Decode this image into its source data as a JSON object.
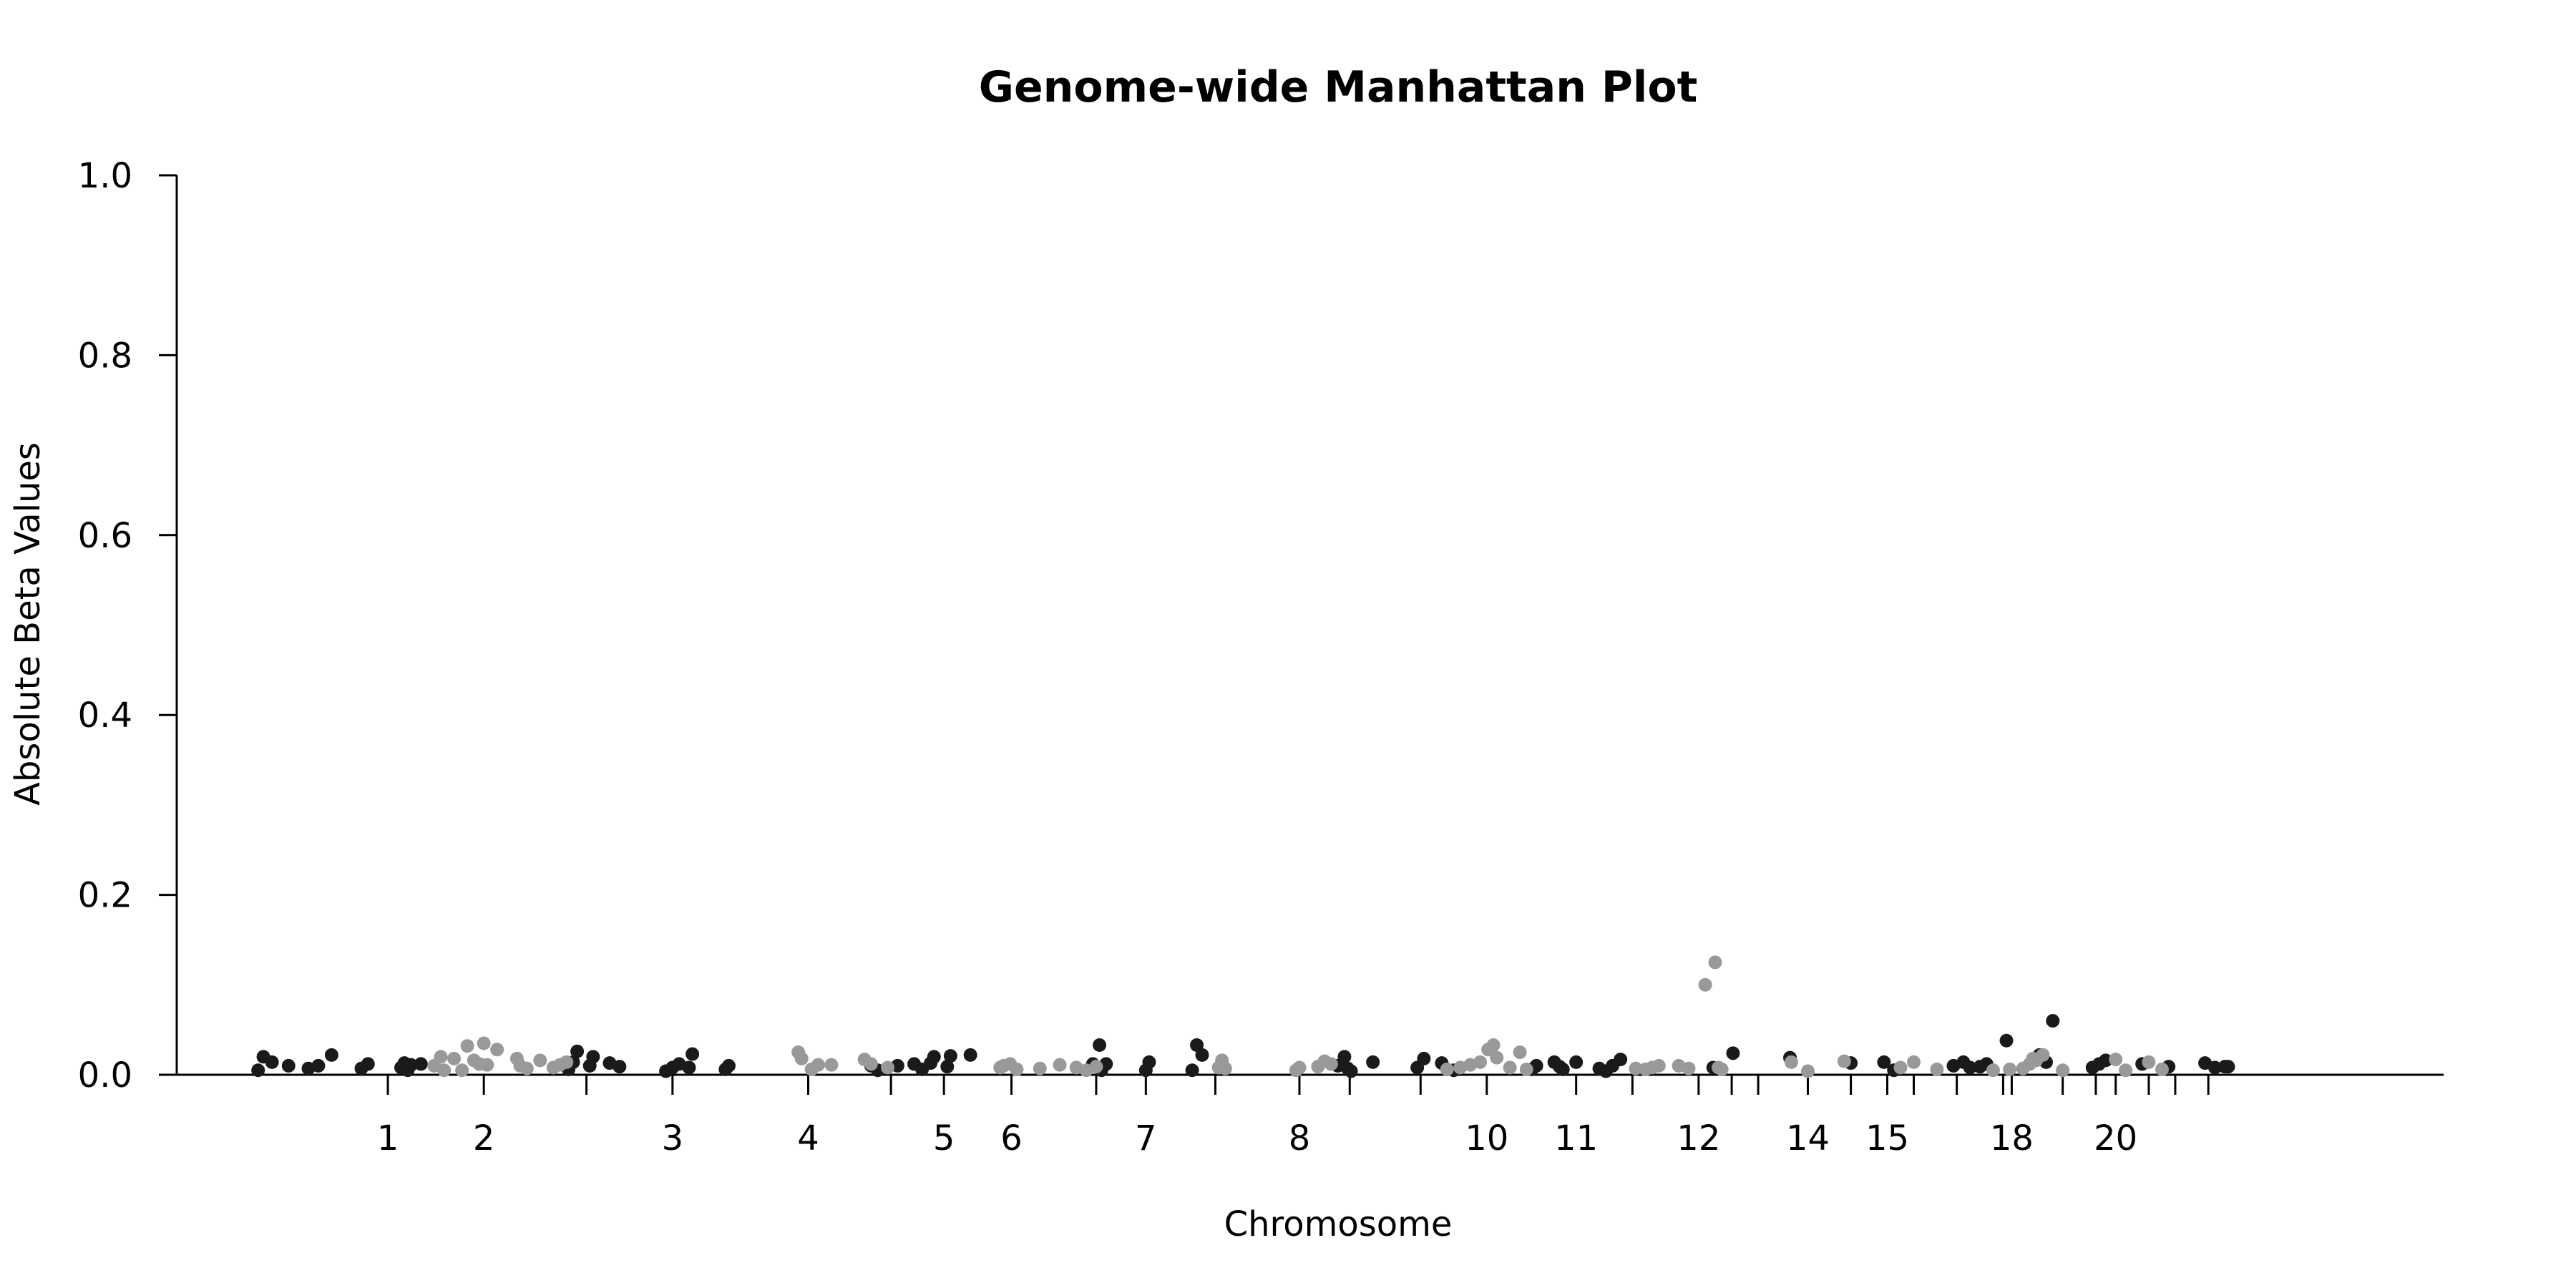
{
  "chart_data": {
    "type": "scatter",
    "title": "Genome-wide Manhattan Plot",
    "xlabel": "Chromosome",
    "ylabel": "Absolute Beta Values",
    "ylim": [
      0,
      1.0
    ],
    "xlim": [
      0,
      33
    ],
    "yticks": [
      0.0,
      0.2,
      0.4,
      0.6,
      0.8,
      1.0
    ],
    "ytick_labels": [
      "0.0",
      "0.2",
      "0.4",
      "0.6",
      "0.8",
      "1.0"
    ],
    "grid": false,
    "legend": "none",
    "colors": {
      "odd": "#1a1a1a",
      "even": "#999999"
    },
    "chromosome_ticks": [
      {
        "label": "1",
        "x": 2.0
      },
      {
        "label": "2",
        "x": 3.45
      },
      {
        "label": "",
        "x": 5.0
      },
      {
        "label": "3",
        "x": 6.3
      },
      {
        "label": "4",
        "x": 8.35
      },
      {
        "label": "",
        "x": 9.6
      },
      {
        "label": "5",
        "x": 10.4
      },
      {
        "label": "6",
        "x": 11.42
      },
      {
        "label": "",
        "x": 12.7
      },
      {
        "label": "7",
        "x": 13.45
      },
      {
        "label": "",
        "x": 14.5
      },
      {
        "label": "8",
        "x": 15.77
      },
      {
        "label": "",
        "x": 16.53
      },
      {
        "label": "",
        "x": 17.6
      },
      {
        "label": "10",
        "x": 18.6
      },
      {
        "label": "11",
        "x": 19.95
      },
      {
        "label": "",
        "x": 20.8
      },
      {
        "label": "12",
        "x": 21.8
      },
      {
        "label": "",
        "x": 22.3
      },
      {
        "label": "",
        "x": 22.7
      },
      {
        "label": "14",
        "x": 23.45
      },
      {
        "label": "",
        "x": 24.1
      },
      {
        "label": "15",
        "x": 24.65
      },
      {
        "label": "",
        "x": 25.05
      },
      {
        "label": "",
        "x": 25.7
      },
      {
        "label": "",
        "x": 26.4
      },
      {
        "label": "18",
        "x": 26.53
      },
      {
        "label": "",
        "x": 27.3
      },
      {
        "label": "",
        "x": 27.8
      },
      {
        "label": "20",
        "x": 28.1
      },
      {
        "label": "",
        "x": 28.6
      },
      {
        "label": "",
        "x": 29.0
      },
      {
        "label": "",
        "x": 29.5
      }
    ],
    "series": [
      {
        "color_key": "odd",
        "points": [
          [
            0.04,
            0.005
          ],
          [
            0.12,
            0.02
          ],
          [
            0.25,
            0.014
          ],
          [
            0.5,
            0.01
          ],
          [
            0.8,
            0.007
          ],
          [
            0.95,
            0.01
          ],
          [
            1.15,
            0.022
          ],
          [
            1.6,
            0.007
          ],
          [
            1.7,
            0.012
          ],
          [
            2.2,
            0.008
          ],
          [
            2.25,
            0.013
          ],
          [
            2.3,
            0.005
          ],
          [
            2.35,
            0.011
          ],
          [
            2.5,
            0.012
          ],
          [
            4.73,
            0.006
          ],
          [
            4.8,
            0.014
          ],
          [
            4.86,
            0.026
          ],
          [
            5.05,
            0.01
          ],
          [
            5.1,
            0.02
          ],
          [
            5.35,
            0.013
          ],
          [
            5.5,
            0.009
          ],
          [
            6.2,
            0.004
          ],
          [
            6.3,
            0.008
          ],
          [
            6.4,
            0.012
          ],
          [
            6.55,
            0.008
          ],
          [
            6.6,
            0.023
          ],
          [
            7.1,
            0.006
          ],
          [
            7.15,
            0.01
          ],
          [
            10.2,
            0.013
          ],
          [
            10.25,
            0.02
          ],
          [
            10.45,
            0.009
          ],
          [
            10.5,
            0.021
          ],
          [
            10.8,
            0.022
          ],
          [
            9.3,
            0.01
          ],
          [
            9.4,
            0.005
          ],
          [
            9.7,
            0.01
          ],
          [
            9.95,
            0.012
          ],
          [
            10.07,
            0.006
          ],
          [
            12.65,
            0.012
          ],
          [
            12.75,
            0.033
          ],
          [
            12.78,
            0.005
          ],
          [
            12.85,
            0.012
          ],
          [
            13.45,
            0.005
          ],
          [
            13.5,
            0.014
          ],
          [
            14.15,
            0.005
          ],
          [
            14.22,
            0.033
          ],
          [
            14.3,
            0.022
          ],
          [
            16.35,
            0.01
          ],
          [
            16.45,
            0.02
          ],
          [
            16.5,
            0.007
          ],
          [
            16.55,
            0.004
          ],
          [
            16.88,
            0.014
          ],
          [
            17.55,
            0.008
          ],
          [
            17.65,
            0.018
          ],
          [
            17.92,
            0.013
          ],
          [
            18.1,
            0.005
          ],
          [
            19.28,
            0.006
          ],
          [
            19.35,
            0.01
          ],
          [
            19.62,
            0.014
          ],
          [
            19.7,
            0.009
          ],
          [
            19.75,
            0.006
          ],
          [
            19.95,
            0.014
          ],
          [
            20.3,
            0.007
          ],
          [
            20.4,
            0.004
          ],
          [
            20.5,
            0.01
          ],
          [
            20.62,
            0.017
          ],
          [
            22.02,
            0.008
          ],
          [
            22.32,
            0.024
          ],
          [
            23.18,
            0.019
          ],
          [
            24.1,
            0.013
          ],
          [
            24.6,
            0.014
          ],
          [
            24.75,
            0.005
          ],
          [
            25.65,
            0.01
          ],
          [
            25.8,
            0.014
          ],
          [
            25.9,
            0.008
          ],
          [
            26.05,
            0.009
          ],
          [
            26.15,
            0.012
          ],
          [
            26.45,
            0.038
          ],
          [
            26.95,
            0.022
          ],
          [
            27.05,
            0.014
          ],
          [
            27.15,
            0.06
          ],
          [
            27.75,
            0.008
          ],
          [
            27.85,
            0.012
          ],
          [
            27.95,
            0.016
          ],
          [
            28.5,
            0.012
          ],
          [
            28.9,
            0.009
          ],
          [
            29.45,
            0.013
          ],
          [
            29.6,
            0.008
          ],
          [
            29.75,
            0.009
          ],
          [
            29.8,
            0.009
          ]
        ]
      },
      {
        "color_key": "even",
        "points": [
          [
            2.7,
            0.01
          ],
          [
            2.8,
            0.02
          ],
          [
            2.85,
            0.005
          ],
          [
            3.0,
            0.018
          ],
          [
            3.12,
            0.005
          ],
          [
            3.2,
            0.032
          ],
          [
            3.3,
            0.016
          ],
          [
            3.38,
            0.012
          ],
          [
            3.45,
            0.035
          ],
          [
            3.5,
            0.011
          ],
          [
            3.65,
            0.028
          ],
          [
            3.95,
            0.018
          ],
          [
            4.0,
            0.01
          ],
          [
            4.1,
            0.007
          ],
          [
            4.3,
            0.016
          ],
          [
            4.5,
            0.008
          ],
          [
            4.6,
            0.011
          ],
          [
            4.7,
            0.014
          ],
          [
            8.2,
            0.025
          ],
          [
            8.25,
            0.018
          ],
          [
            8.4,
            0.006
          ],
          [
            8.5,
            0.011
          ],
          [
            8.7,
            0.011
          ],
          [
            9.2,
            0.017
          ],
          [
            9.3,
            0.012
          ],
          [
            9.55,
            0.008
          ],
          [
            11.25,
            0.008
          ],
          [
            11.3,
            0.01
          ],
          [
            11.4,
            0.012
          ],
          [
            11.5,
            0.006
          ],
          [
            11.85,
            0.007
          ],
          [
            12.15,
            0.011
          ],
          [
            12.4,
            0.008
          ],
          [
            12.55,
            0.005
          ],
          [
            12.7,
            0.009
          ],
          [
            14.55,
            0.008
          ],
          [
            14.6,
            0.016
          ],
          [
            14.65,
            0.007
          ],
          [
            15.72,
            0.005
          ],
          [
            15.77,
            0.008
          ],
          [
            16.05,
            0.009
          ],
          [
            16.15,
            0.015
          ],
          [
            16.25,
            0.012
          ],
          [
            18.0,
            0.006
          ],
          [
            18.2,
            0.008
          ],
          [
            18.35,
            0.011
          ],
          [
            18.5,
            0.014
          ],
          [
            18.62,
            0.028
          ],
          [
            18.7,
            0.033
          ],
          [
            18.75,
            0.019
          ],
          [
            18.95,
            0.008
          ],
          [
            19.1,
            0.025
          ],
          [
            19.2,
            0.006
          ],
          [
            20.85,
            0.007
          ],
          [
            21.0,
            0.006
          ],
          [
            21.1,
            0.008
          ],
          [
            21.2,
            0.01
          ],
          [
            21.5,
            0.01
          ],
          [
            21.65,
            0.007
          ],
          [
            21.9,
            0.1
          ],
          [
            22.05,
            0.125
          ],
          [
            22.1,
            0.008
          ],
          [
            22.15,
            0.006
          ],
          [
            23.2,
            0.014
          ],
          [
            23.45,
            0.004
          ],
          [
            24.0,
            0.015
          ],
          [
            24.85,
            0.008
          ],
          [
            25.05,
            0.014
          ],
          [
            25.4,
            0.006
          ],
          [
            26.25,
            0.005
          ],
          [
            26.5,
            0.006
          ],
          [
            26.7,
            0.007
          ],
          [
            26.8,
            0.012
          ],
          [
            26.85,
            0.018
          ],
          [
            26.9,
            0.016
          ],
          [
            27.0,
            0.022
          ],
          [
            27.3,
            0.005
          ],
          [
            28.1,
            0.017
          ],
          [
            28.25,
            0.005
          ],
          [
            28.6,
            0.014
          ],
          [
            28.8,
            0.006
          ]
        ]
      }
    ]
  }
}
